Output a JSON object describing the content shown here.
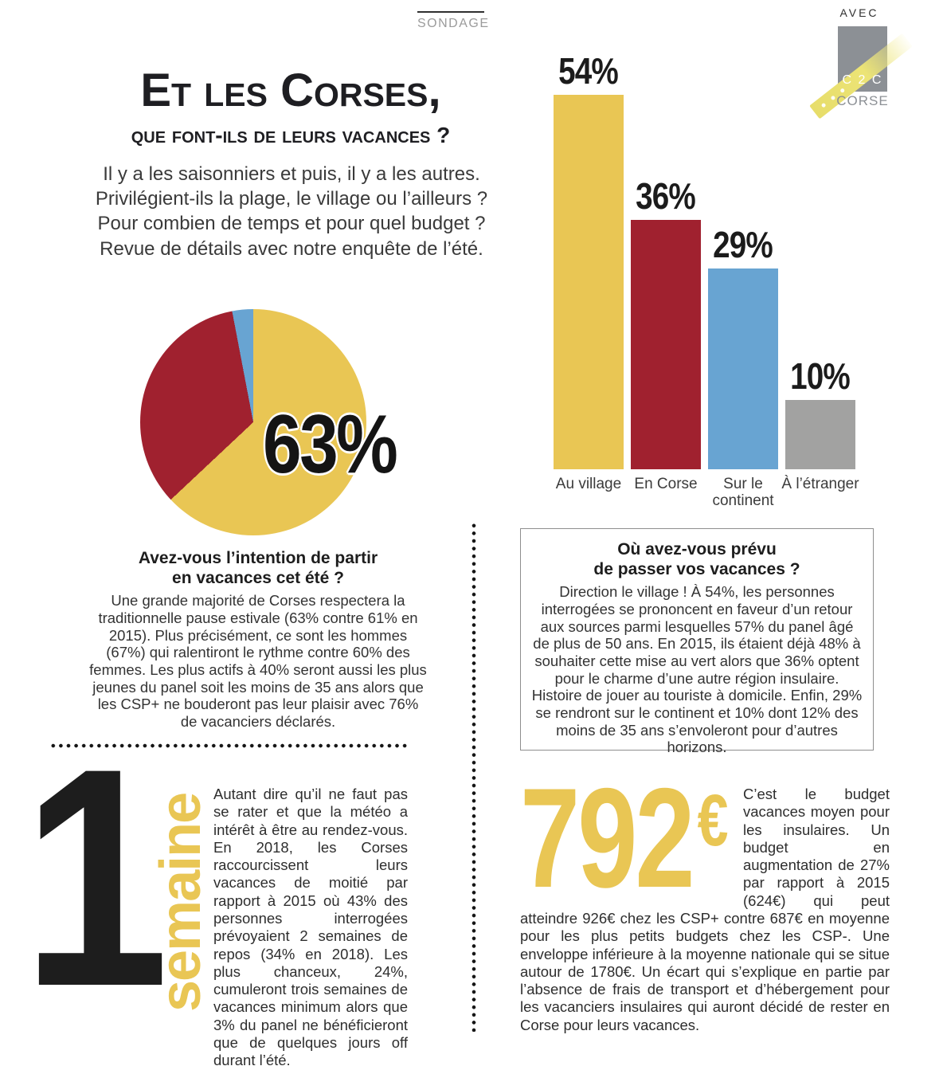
{
  "header": {
    "section_label": "SONDAGE",
    "title": "Et les Corses,",
    "subtitle": "que font-ils de leurs vacances ?",
    "intro_lines": [
      "Il y a les saisonniers et puis, il y a les autres.",
      "Privilégient-ils la plage, le village ou l’ailleurs ?",
      "Pour combien de temps et pour quel budget ?",
      "Revue de détails avec notre enquête de l’été."
    ]
  },
  "brand": {
    "avec": "AVEC",
    "name": "C 2 C",
    "region": "CORSE"
  },
  "colors": {
    "accent_yellow": "#e9c654",
    "accent_red": "#a0212f",
    "accent_blue": "#68a4d2",
    "accent_gray": "#a2a2a1"
  },
  "chart_data": [
    {
      "type": "pie",
      "question": "Avez-vous l’intention de partir en vacances cet été ?",
      "shown_value_label": "63%",
      "slices": [
        {
          "label": "63%",
          "value": 63,
          "color": "#e9c654"
        },
        {
          "label": "",
          "value": 34,
          "color": "#a0212f"
        },
        {
          "label": "",
          "value": 3,
          "color": "#68a4d2"
        }
      ],
      "legend_position": "none",
      "start_angle_deg": 0
    },
    {
      "type": "bar",
      "question": "Où avez-vous prévu de passer vos vacances ?",
      "categories": [
        "Au village",
        "En Corse",
        "Sur le continent",
        "À l’étranger"
      ],
      "values": [
        54,
        36,
        29,
        10
      ],
      "value_labels": [
        "54%",
        "36%",
        "29%",
        "10%"
      ],
      "colors": [
        "#e9c654",
        "#a0212f",
        "#68a4d2",
        "#a2a2a1"
      ],
      "unit": "%",
      "ylim": [
        0,
        54
      ],
      "grid": false,
      "axis": "none"
    }
  ],
  "qa_left": {
    "heading_lines": [
      "Avez-vous l’intention de partir",
      "en vacances cet été ?"
    ],
    "body": "Une grande majorité de Corses respectera la traditionnelle pause estivale (63% contre 61% en 2015). Plus précisément, ce sont les hommes (67%) qui ralentiront le rythme contre 60% des femmes. Les plus actifs à 40% seront aussi les plus jeunes du panel soit les moins de 35 ans alors que les CSP+ ne bouderont pas leur plaisir avec 76% de vacanciers déclarés."
  },
  "qa_right": {
    "heading_lines": [
      "Où avez-vous prévu",
      "de passer vos vacances ?"
    ],
    "body": "Direction le village ! À 54%, les personnes interrogées se prononcent en faveur d’un retour aux sources parmi lesquelles 57% du panel âgé de plus de 50 ans. En 2015, ils étaient déjà 48% à souhaiter cette mise au vert alors que 36% optent pour le charme d’une autre région insulaire. Histoire de jouer au touriste à domicile. Enfin, 29% se rendront sur le continent et 10% dont 12% des moins de 35 ans s’envoleront pour d’autres horizons."
  },
  "feature_week": {
    "number": "1",
    "unit": "semaine",
    "body": "Autant dire qu’il ne faut pas se rater et que la météo a intérêt à être au rendez-vous. En 2018, les Corses raccourcissent leurs vacances de moitié par rapport à 2015 où 43% des personnes interrogées prévoyaient 2 semaines de repos (34% en 2018). Les plus chanceux, 24%, cumuleront trois semaines de vacances minimum alors que 3% du panel ne bénéficieront que de quelques jours off durant l’été."
  },
  "feature_budget": {
    "amount": "792",
    "currency": "€",
    "body": "C’est le budget vacances moyen pour les insulaires. Un budget en augmentation de 27% par rapport à 2015 (624€) qui peut atteindre 926€ chez les CSP+ contre 687€ en moyenne pour les plus petits budgets chez les CSP-. Une enveloppe inférieure à la moyenne nationale qui se situe autour de 1780€. Un écart qui s’explique en partie par l’absence de frais de transport et d’hébergement pour les vacanciers insulaires qui auront décidé de rester en Corse pour leurs vacances."
  }
}
